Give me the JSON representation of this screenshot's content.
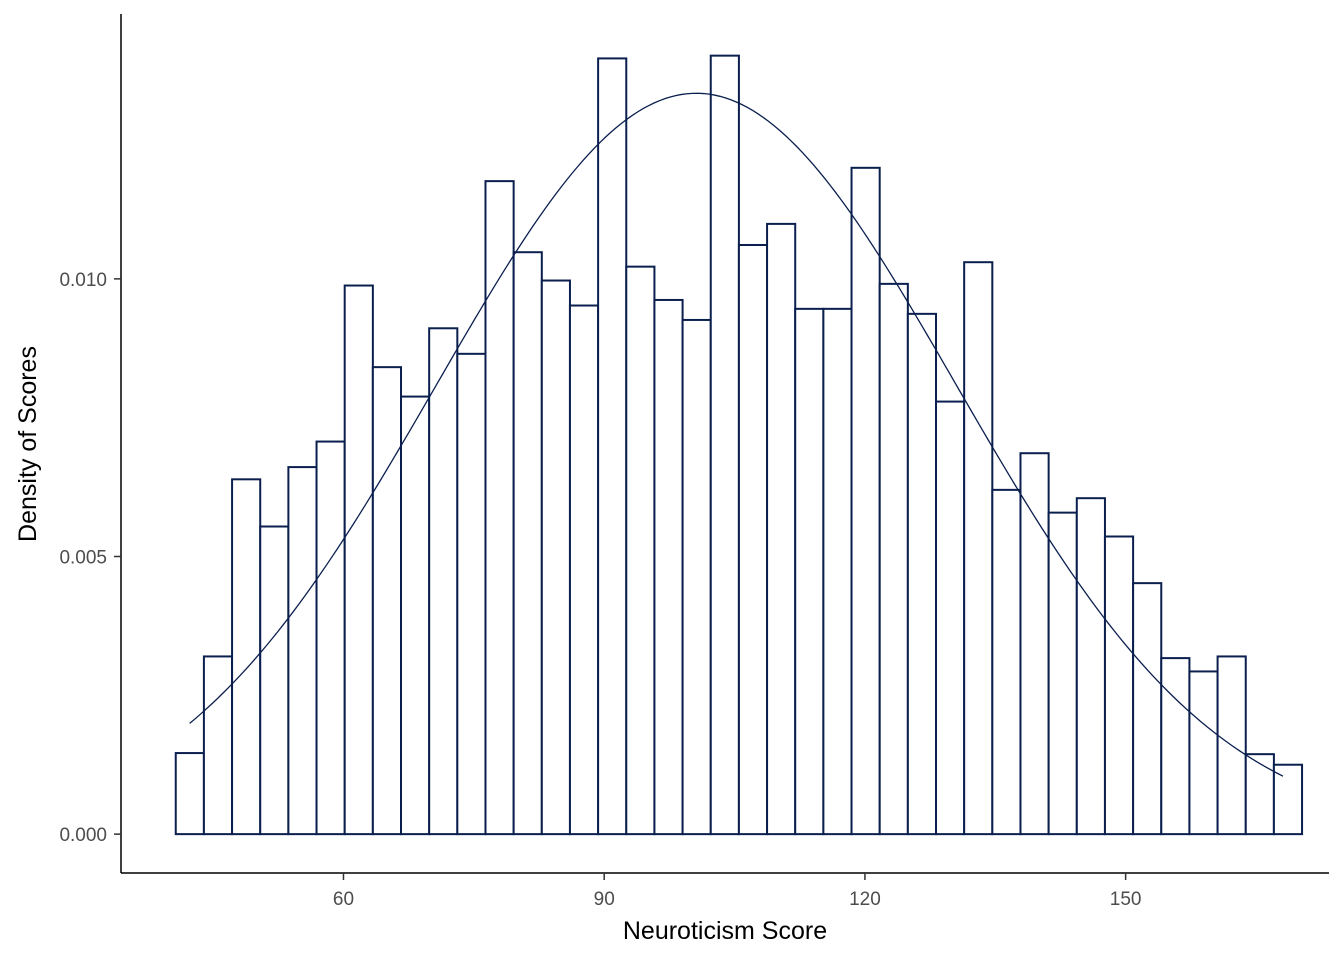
{
  "chart_data": {
    "type": "histogram",
    "xlabel": "Neuroticism Score",
    "ylabel": "Density of Scores",
    "xlim": [
      34.4,
      173.4
    ],
    "ylim": [
      -0.0007,
      0.01477
    ],
    "x_ticks": [
      60,
      90,
      120,
      150
    ],
    "x_tick_labels": [
      "60",
      "90",
      "120",
      "150"
    ],
    "y_ticks": [
      0.0,
      0.005,
      0.01
    ],
    "y_tick_labels": [
      "0.000",
      "0.005",
      "0.010"
    ],
    "grid": false,
    "legend": "none",
    "bin_width": 3.24,
    "bins_start": 40.7,
    "bar_values": [
      0.00146,
      0.0032,
      0.00639,
      0.00554,
      0.00661,
      0.00707,
      0.00988,
      0.00841,
      0.00788,
      0.00911,
      0.00865,
      0.01176,
      0.01048,
      0.00997,
      0.00952,
      0.01397,
      0.01022,
      0.00962,
      0.00926,
      0.01402,
      0.01061,
      0.01099,
      0.00946,
      0.00946,
      0.012,
      0.00991,
      0.00937,
      0.00779,
      0.0103,
      0.0062,
      0.00686,
      0.00579,
      0.00605,
      0.00536,
      0.00452,
      0.00317,
      0.00293,
      0.0032,
      0.00144,
      0.00125
    ],
    "density_curve": {
      "type": "normal",
      "mean": 100.6,
      "sd": 29.9,
      "x_range": [
        42.3,
        168.1
      ]
    },
    "colors": {
      "stroke": "#0b1f4f",
      "fill": "#ffffff",
      "axis": "#000000",
      "tick_text": "#4d4d4d"
    }
  }
}
